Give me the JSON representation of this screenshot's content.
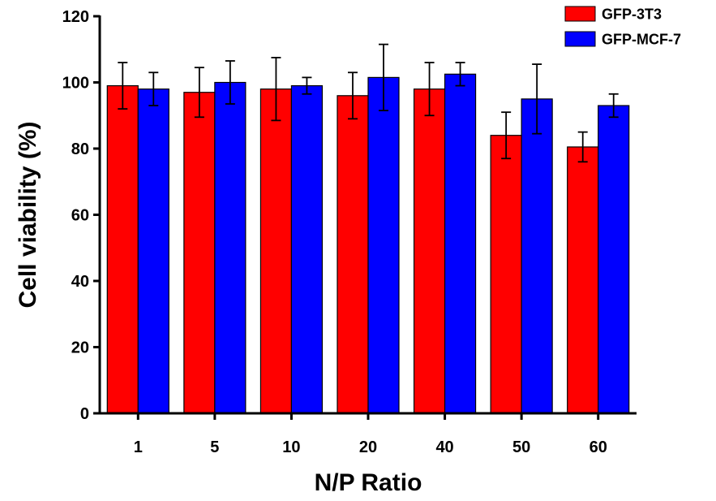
{
  "chart_data": {
    "type": "bar",
    "xlabel": "N/P Ratio",
    "ylabel": "Cell viability (%)",
    "ylim": [
      0,
      120
    ],
    "yticks": [
      "0",
      "20",
      "40",
      "60",
      "80",
      "100",
      "120"
    ],
    "categories": [
      "1",
      "5",
      "10",
      "20",
      "40",
      "50",
      "60"
    ],
    "legend_position": "top-right",
    "grid": false,
    "series": [
      {
        "name": "GFP-3T3",
        "color": "#ff0000",
        "values": [
          99,
          97,
          98,
          96,
          98,
          84,
          80.5
        ],
        "errors": [
          7,
          7.5,
          9.5,
          7,
          8,
          7,
          4.5
        ]
      },
      {
        "name": "GFP-MCF-7",
        "color": "#0000ff",
        "values": [
          98,
          100,
          99,
          101.5,
          102.5,
          95,
          93
        ],
        "errors": [
          5,
          6.5,
          2.5,
          10,
          3.5,
          10.5,
          3.5
        ]
      }
    ]
  }
}
